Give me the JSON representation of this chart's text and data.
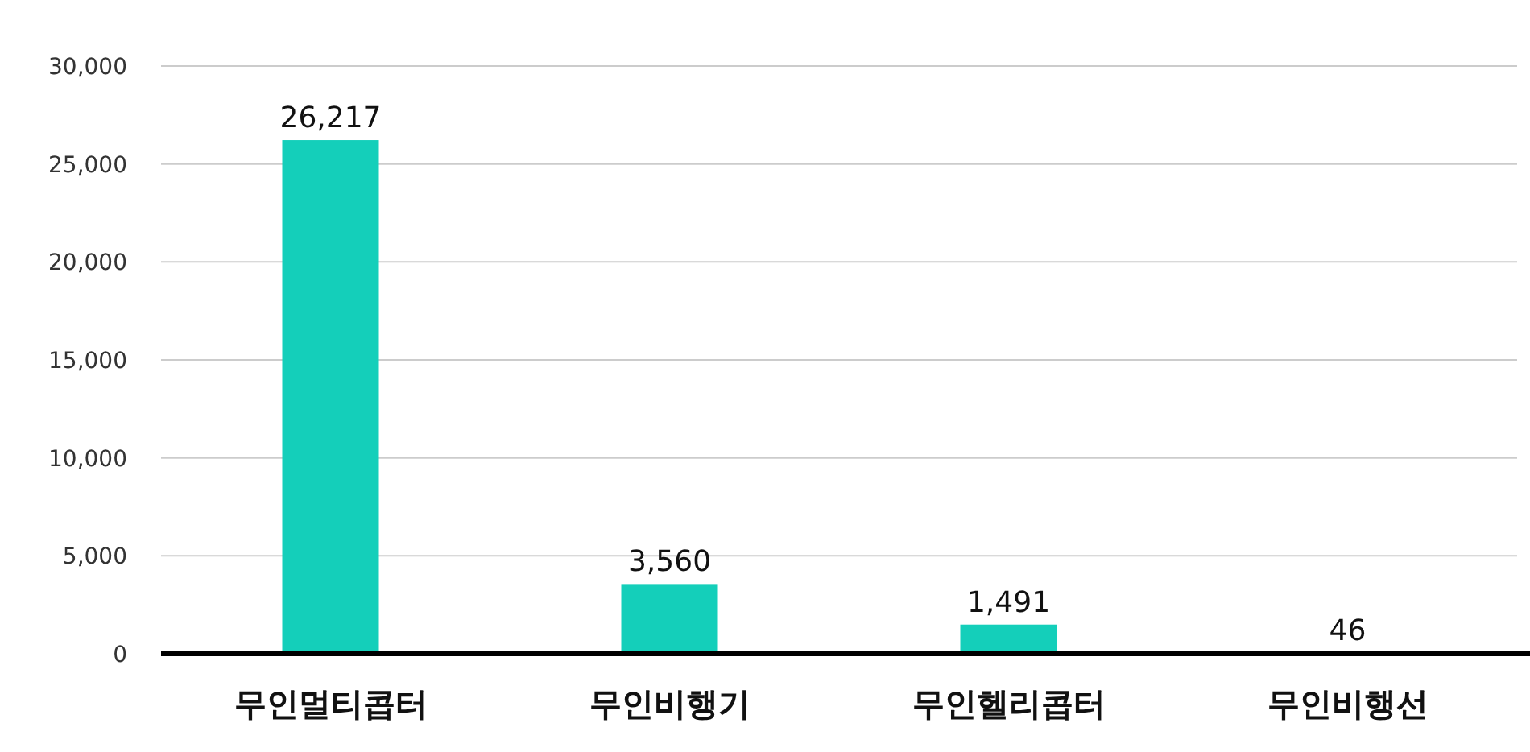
{
  "chart_data": {
    "type": "bar",
    "categories": [
      "무인멀티콥터",
      "무인비행기",
      "무인헬리콥터",
      "무인비행선"
    ],
    "values": [
      26217,
      3560,
      1491,
      46
    ],
    "color": "#14cfba",
    "ylim": [
      0,
      30000
    ],
    "yticks": [
      0,
      {
        "value": 5000,
        "label": "5,000"
      },
      {
        "value": 10000,
        "label": "10,000"
      },
      {
        "value": 15000,
        "label": "15,000"
      },
      {
        "value": 20000,
        "label": "20,000"
      },
      {
        "value": 25000,
        "label": "25,000"
      },
      {
        "value": 30000,
        "label": "30,000"
      }
    ],
    "grid": "y",
    "value_labels": [
      "26,217",
      "3,560",
      "1,491",
      "46"
    ]
  }
}
